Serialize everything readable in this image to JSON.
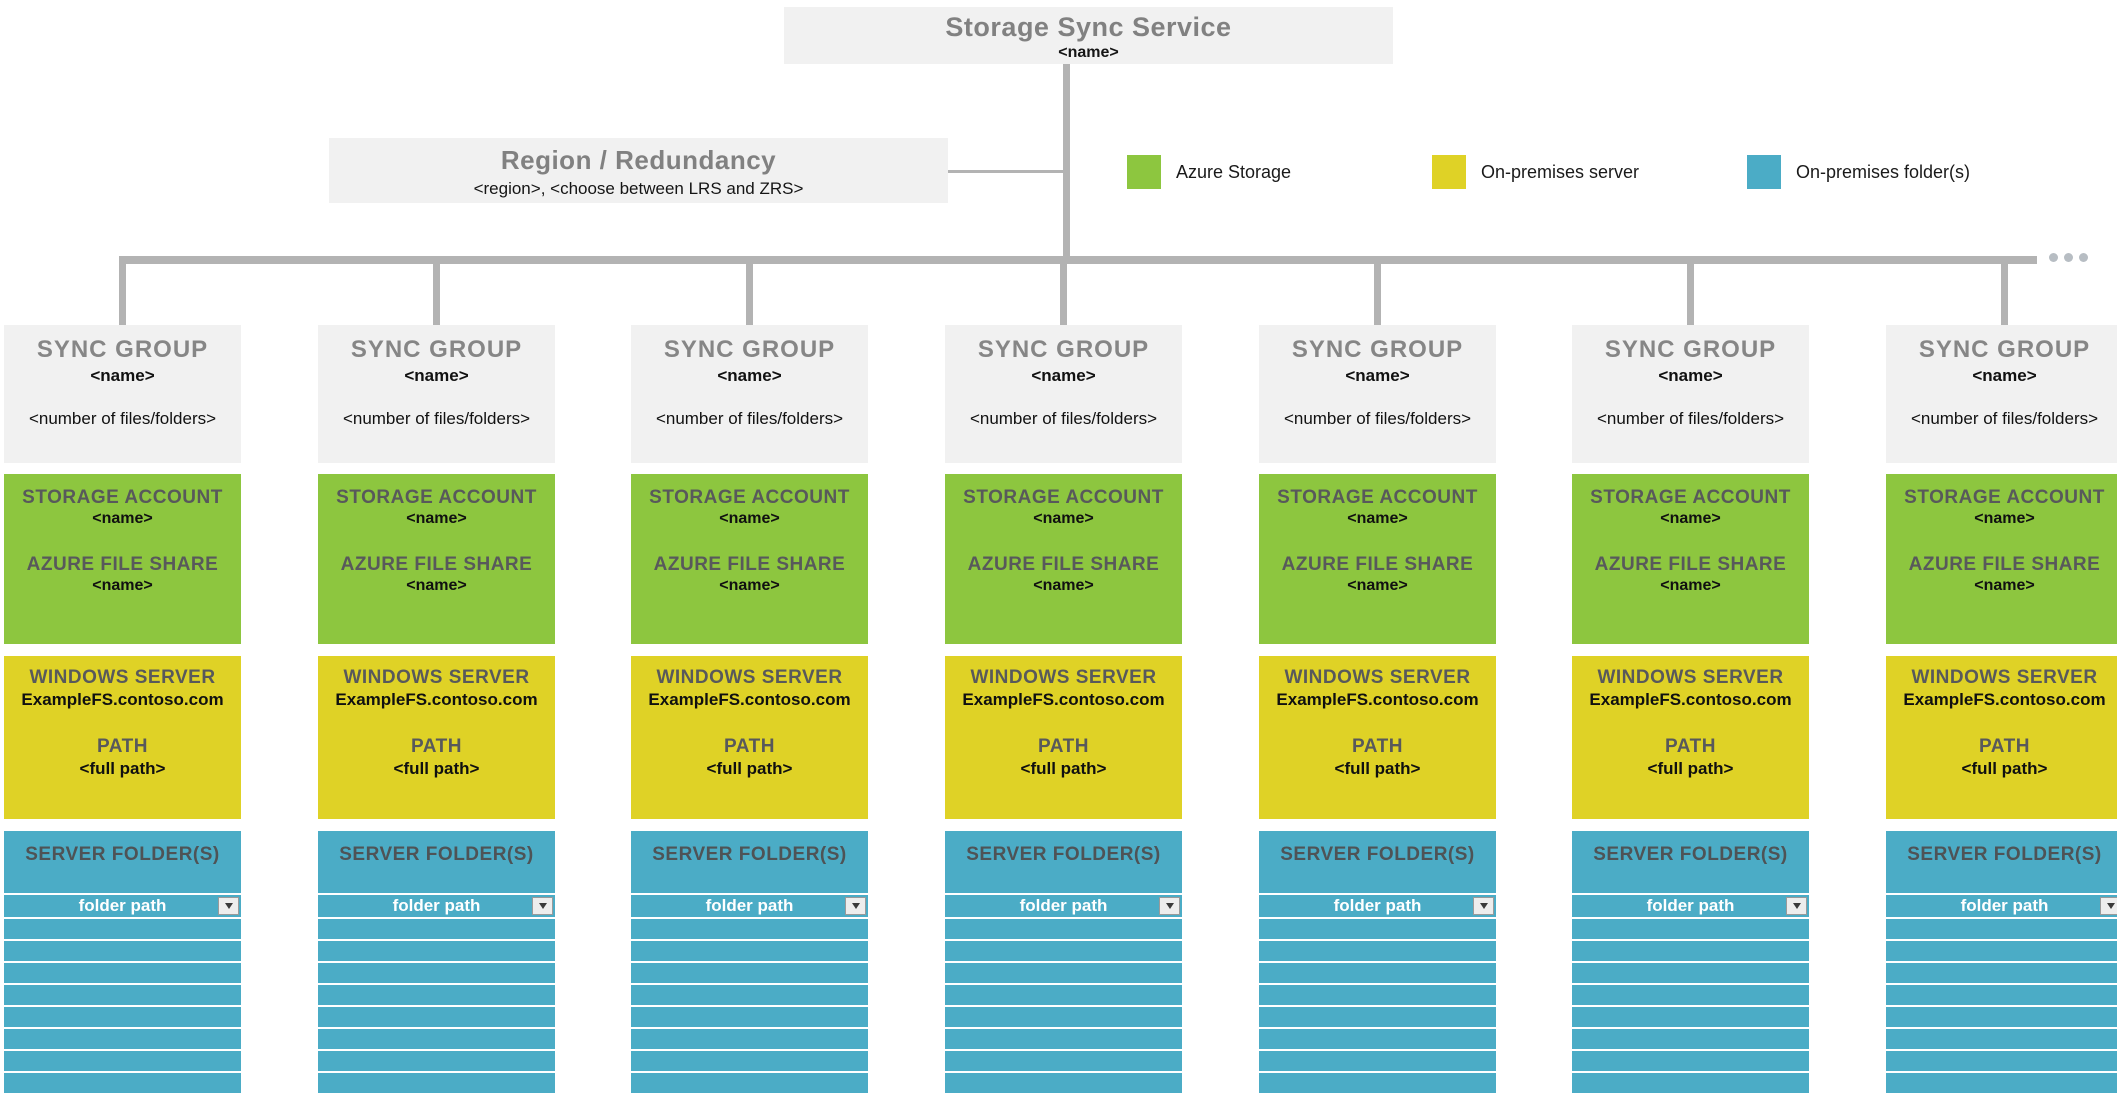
{
  "colors": {
    "azure_green": "#8DC63F",
    "onprem_yellow": "#DFD226",
    "onprem_teal": "#4BACC6",
    "box_gray": "#F1F1F1",
    "line_gray": "#B3B3B3",
    "heading_gray": "#818181",
    "dark_heading": "#58595B"
  },
  "root_box": {
    "title": "Storage Sync Service",
    "name": "<name>"
  },
  "region_box": {
    "title": "Region / Redundancy",
    "subtitle": "<region>, <choose between LRS and ZRS>"
  },
  "legend": {
    "items": [
      {
        "label": "Azure Storage",
        "color": "#8DC63F"
      },
      {
        "label": "On-premises server",
        "color": "#DFD226"
      },
      {
        "label": "On-premises folder(s)",
        "color": "#4BACC6"
      }
    ]
  },
  "sync_group": {
    "title": "SYNC GROUP",
    "name": "<name>",
    "count": "<number of files/folders>",
    "storage_account_label": "STORAGE ACCOUNT",
    "storage_account_name": "<name>",
    "file_share_label": "AZURE FILE SHARE",
    "file_share_name": "<name>",
    "windows_server_label": "WINDOWS SERVER",
    "windows_server_name": "ExampleFS.contoso.com",
    "path_label": "PATH",
    "path_value": "<full path>",
    "folders_label": "SERVER FOLDER(S)",
    "folder_dropdown_value": "folder path",
    "dropdown_icon": "chevron-down-icon",
    "empty_row_count": 8
  },
  "sync_group_count": 7,
  "more_indicator": {
    "dot_count": 3
  }
}
